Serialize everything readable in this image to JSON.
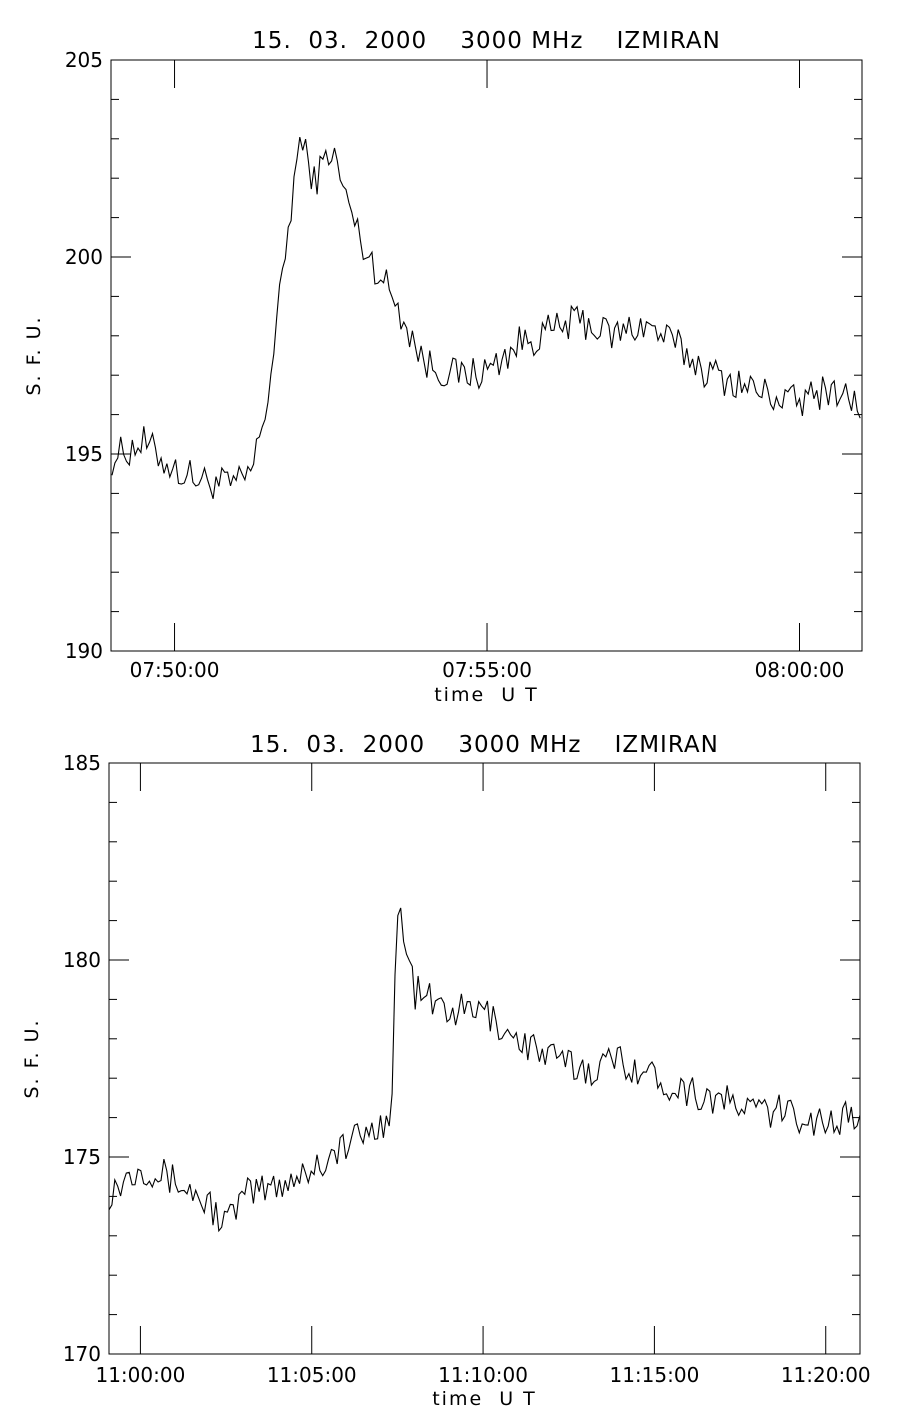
{
  "chart_data": [
    {
      "type": "line",
      "title": "15.  03.  2000    3000 MHz    IZMIRAN",
      "xlabel": "time  U T",
      "ylabel": "S. F. U.",
      "xlim": [
        "07:48:59",
        "08:01:00"
      ],
      "ylim": [
        190,
        205
      ],
      "yticks": [
        190,
        195,
        200,
        205
      ],
      "xticks": [
        "07:50:00",
        "07:55:00",
        "08:00:00"
      ],
      "grid": false,
      "series": [
        {
          "x": [
            "07:49:00",
            "07:49:30",
            "07:50:00",
            "07:50:30",
            "07:51:00",
            "07:51:15",
            "07:51:30",
            "07:51:45",
            "07:52:00",
            "07:52:15",
            "07:52:30",
            "07:52:45",
            "07:53:00",
            "07:53:30",
            "07:54:00",
            "07:54:30",
            "07:55:00",
            "07:55:30",
            "07:56:00",
            "07:56:30",
            "07:57:00",
            "07:57:30",
            "07:58:00",
            "07:58:30",
            "07:59:00",
            "07:59:30",
            "08:00:00",
            "08:00:30",
            "08:01:00"
          ],
          "values": [
            194.9,
            195.3,
            194.6,
            194.3,
            194.2,
            194.6,
            196.5,
            199.8,
            203.0,
            201.9,
            202.8,
            201.5,
            200.3,
            199.0,
            197.3,
            197.0,
            197.1,
            197.8,
            198.1,
            198.4,
            198.0,
            198.3,
            197.8,
            197.1,
            196.8,
            196.5,
            196.3,
            196.7,
            196.2
          ]
        }
      ]
    },
    {
      "type": "line",
      "title": "15.  03.  2000    3000 MHz    IZMIRAN",
      "xlabel": "time  U T",
      "ylabel": "S. F. U.",
      "xlim": [
        "10:59:05",
        "11:21:00"
      ],
      "ylim": [
        170,
        185
      ],
      "yticks": [
        170,
        175,
        180,
        185
      ],
      "xticks": [
        "11:00:00",
        "11:05:00",
        "11:10:00",
        "11:15:00",
        "11:20:00"
      ],
      "grid": false,
      "series": [
        {
          "x": [
            "10:59:05",
            "11:00:00",
            "11:01:00",
            "11:02:00",
            "11:02:30",
            "11:03:00",
            "11:04:00",
            "11:05:00",
            "11:06:00",
            "11:07:00",
            "11:07:20",
            "11:07:30",
            "11:08:00",
            "11:09:00",
            "11:10:00",
            "11:11:00",
            "11:12:00",
            "11:13:00",
            "11:14:00",
            "11:15:00",
            "11:16:00",
            "11:17:00",
            "11:18:00",
            "11:19:00",
            "11:20:00",
            "11:21:00"
          ],
          "values": [
            174.1,
            174.8,
            174.4,
            173.8,
            173.3,
            174.0,
            174.3,
            174.7,
            175.3,
            175.8,
            176.3,
            181.5,
            179.2,
            178.7,
            178.7,
            178.0,
            177.5,
            177.2,
            177.5,
            177.0,
            176.7,
            176.4,
            176.2,
            176.1,
            175.9,
            176.0
          ]
        }
      ]
    }
  ]
}
